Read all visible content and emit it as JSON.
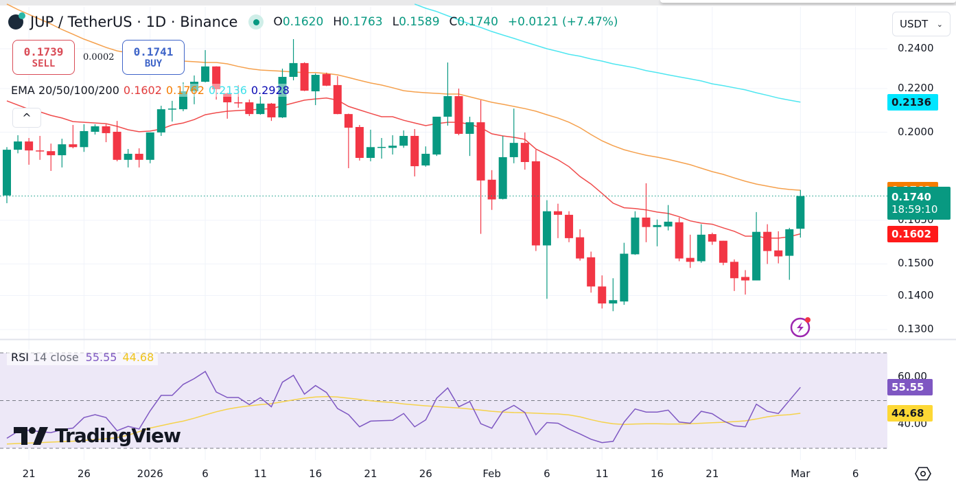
{
  "header": {
    "symbol": "JUP / TetherUS · 1D · Binance",
    "ohlc": {
      "o_label": "O",
      "o": "0.1620",
      "h_label": "H",
      "h": "0.1763",
      "l_label": "L",
      "l": "0.1589",
      "c_label": "C",
      "c": "0.1740",
      "change": "+0.0121 (+7.47%)"
    },
    "market_status_icon": "market-open-dot"
  },
  "trade": {
    "sell_price": "0.1739",
    "sell_label": "SELL",
    "spread": "0.0002",
    "buy_price": "0.1741",
    "buy_label": "BUY"
  },
  "ema_legend": {
    "label": "EMA 20/50/100/200",
    "v20": "0.1602",
    "v50": "0.1762",
    "v100": "0.2136",
    "v200": "0.2928"
  },
  "currency": {
    "selected": "USDT"
  },
  "collapse_label": "^",
  "rsi_legend": {
    "label": "RSI",
    "params": "14 close",
    "rsi": "55.55",
    "ma": "44.68"
  },
  "watermark": "TradingView",
  "colors": {
    "up": "#089981",
    "down": "#f23645",
    "ema20": "#f04b4b",
    "ema50": "#f5a04c",
    "ema100": "#4ee6f0",
    "ema200": "#0a0ab4",
    "rsi": "#7e57c2",
    "rsi_ma": "#f5d24a"
  },
  "chart_data": {
    "type": "candlestick",
    "y_scale": "log",
    "ylim": [
      0.13,
      0.245
    ],
    "grid": true,
    "price_ticks": [
      "0.2400",
      "0.2200",
      "0.2000",
      "0.1650",
      "0.1500",
      "0.1400",
      "0.1300"
    ],
    "time_ticks": [
      {
        "date": "2025-12-21",
        "label": "21"
      },
      {
        "date": "2025-12-26",
        "label": "26"
      },
      {
        "date": "2026-01-01",
        "label": "2026"
      },
      {
        "date": "2026-01-06",
        "label": "6"
      },
      {
        "date": "2026-01-11",
        "label": "11"
      },
      {
        "date": "2026-01-16",
        "label": "16"
      },
      {
        "date": "2026-01-21",
        "label": "21"
      },
      {
        "date": "2026-01-26",
        "label": "26"
      },
      {
        "date": "2026-02-01",
        "label": "Feb"
      },
      {
        "date": "2026-02-06",
        "label": "6"
      },
      {
        "date": "2026-02-11",
        "label": "11"
      },
      {
        "date": "2026-02-16",
        "label": "16"
      },
      {
        "date": "2026-02-21",
        "label": "21"
      },
      {
        "date": "2026-03-01",
        "label": "Mar"
      },
      {
        "date": "2026-03-06",
        "label": "6"
      }
    ],
    "candles": [
      [
        "2025-12-19",
        0.1742,
        0.1936,
        0.1713,
        0.1925
      ],
      [
        "2025-12-20",
        0.1925,
        0.1987,
        0.191,
        0.196
      ],
      [
        "2025-12-21",
        0.196,
        0.1975,
        0.1863,
        0.1922
      ],
      [
        "2025-12-22",
        0.1922,
        0.1984,
        0.1883,
        0.1919
      ],
      [
        "2025-12-23",
        0.1919,
        0.1951,
        0.1838,
        0.1902
      ],
      [
        "2025-12-24",
        0.1902,
        0.1972,
        0.1852,
        0.1948
      ],
      [
        "2025-12-25",
        0.1948,
        0.2032,
        0.1931,
        0.1936
      ],
      [
        "2025-12-26",
        0.1936,
        0.2035,
        0.1916,
        0.2005
      ],
      [
        "2025-12-27",
        0.2002,
        0.2035,
        0.199,
        0.2026
      ],
      [
        "2025-12-28",
        0.2026,
        0.2035,
        0.1957,
        0.1996
      ],
      [
        "2025-12-29",
        0.2002,
        0.205,
        0.1877,
        0.1883
      ],
      [
        "2025-12-30",
        0.1883,
        0.1928,
        0.1852,
        0.1908
      ],
      [
        "2025-12-31",
        0.1908,
        0.1931,
        0.1852,
        0.1883
      ],
      [
        "2026-01-01",
        0.1883,
        0.1999,
        0.1869,
        0.1999
      ],
      [
        "2026-01-02",
        0.1999,
        0.2119,
        0.1984,
        0.2103
      ],
      [
        "2026-01-03",
        0.2103,
        0.2142,
        0.2047,
        0.2106
      ],
      [
        "2026-01-04",
        0.2103,
        0.223,
        0.2094,
        0.2187
      ],
      [
        "2026-01-05",
        0.2187,
        0.2264,
        0.2126,
        0.2233
      ],
      [
        "2026-01-06",
        0.2233,
        0.2393,
        0.223,
        0.2309
      ],
      [
        "2026-01-07",
        0.2309,
        0.231,
        0.2148,
        0.2197
      ],
      [
        "2026-01-08",
        0.2177,
        0.218,
        0.206,
        0.2135
      ],
      [
        "2026-01-09",
        0.2135,
        0.2217,
        0.211,
        0.2133
      ],
      [
        "2026-01-10",
        0.2135,
        0.2148,
        0.2072,
        0.2081
      ],
      [
        "2026-01-11",
        0.2081,
        0.2164,
        0.2078,
        0.2129
      ],
      [
        "2026-01-12",
        0.2129,
        0.2132,
        0.205,
        0.2066
      ],
      [
        "2026-01-13",
        0.2066,
        0.2298,
        0.2063,
        0.2257
      ],
      [
        "2026-01-14",
        0.2257,
        0.2451,
        0.224,
        0.2326
      ],
      [
        "2026-01-15",
        0.2326,
        0.233,
        0.2188,
        0.219
      ],
      [
        "2026-01-16",
        0.2187,
        0.2274,
        0.2122,
        0.2267
      ],
      [
        "2026-01-17",
        0.2271,
        0.2278,
        0.2212,
        0.2214
      ],
      [
        "2026-01-18",
        0.2217,
        0.2261,
        0.208,
        0.2081
      ],
      [
        "2026-01-19",
        0.2081,
        0.2083,
        0.1849,
        0.202
      ],
      [
        "2026-01-20",
        0.2023,
        0.2032,
        0.188,
        0.1891
      ],
      [
        "2026-01-21",
        0.1891,
        0.2011,
        0.1877,
        0.1936
      ],
      [
        "2026-01-22",
        0.1936,
        0.1975,
        0.1888,
        0.1937
      ],
      [
        "2026-01-23",
        0.1933,
        0.1987,
        0.1905,
        0.1942
      ],
      [
        "2026-01-24",
        0.1942,
        0.2008,
        0.1933,
        0.1984
      ],
      [
        "2026-01-25",
        0.1984,
        0.2014,
        0.1816,
        0.1857
      ],
      [
        "2026-01-26",
        0.186,
        0.1939,
        0.1855,
        0.1908
      ],
      [
        "2026-01-27",
        0.1905,
        0.2069,
        0.1899,
        0.2069
      ],
      [
        "2026-01-28",
        0.2069,
        0.2329,
        0.2029,
        0.2164
      ],
      [
        "2026-01-29",
        0.2164,
        0.22,
        0.1987,
        0.1993
      ],
      [
        "2026-01-30",
        0.1993,
        0.2069,
        0.1899,
        0.2044
      ],
      [
        "2026-01-31",
        0.2044,
        0.2145,
        0.1602,
        0.18
      ],
      [
        "2026-02-01",
        0.1803,
        0.1841,
        0.1688,
        0.1727
      ],
      [
        "2026-02-02",
        0.1729,
        0.1984,
        0.1727,
        0.1894
      ],
      [
        "2026-02-03",
        0.1894,
        0.2106,
        0.1869,
        0.1954
      ],
      [
        "2026-02-04",
        0.1954,
        0.1999,
        0.1843,
        0.1874
      ],
      [
        "2026-02-05",
        0.1877,
        0.1925,
        0.1543,
        0.1562
      ],
      [
        "2026-02-06",
        0.1562,
        0.1724,
        0.139,
        0.1683
      ],
      [
        "2026-02-07",
        0.1683,
        0.1711,
        0.1587,
        0.167
      ],
      [
        "2026-02-08",
        0.167,
        0.1683,
        0.1573,
        0.1587
      ],
      [
        "2026-02-09",
        0.159,
        0.1618,
        0.1511,
        0.1518
      ],
      [
        "2026-02-10",
        0.1522,
        0.1541,
        0.1409,
        0.1428
      ],
      [
        "2026-02-11",
        0.1428,
        0.1463,
        0.1361,
        0.1376
      ],
      [
        "2026-02-12",
        0.1376,
        0.1454,
        0.1353,
        0.1386
      ],
      [
        "2026-02-13",
        0.1382,
        0.1571,
        0.1372,
        0.1534
      ],
      [
        "2026-02-14",
        0.1532,
        0.1683,
        0.153,
        0.166
      ],
      [
        "2026-02-15",
        0.166,
        0.1789,
        0.1573,
        0.1626
      ],
      [
        "2026-02-16",
        0.1626,
        0.1653,
        0.1559,
        0.1633
      ],
      [
        "2026-02-17",
        0.1628,
        0.1706,
        0.1614,
        0.1645
      ],
      [
        "2026-02-18",
        0.1643,
        0.166,
        0.1509,
        0.1518
      ],
      [
        "2026-02-19",
        0.152,
        0.1599,
        0.1487,
        0.1507
      ],
      [
        "2026-02-20",
        0.1509,
        0.1636,
        0.1504,
        0.1599
      ],
      [
        "2026-02-21",
        0.1601,
        0.1606,
        0.1564,
        0.1575
      ],
      [
        "2026-02-22",
        0.1578,
        0.1578,
        0.1496,
        0.1504
      ],
      [
        "2026-02-23",
        0.1507,
        0.1515,
        0.1414,
        0.1454
      ],
      [
        "2026-02-24",
        0.1458,
        0.148,
        0.1403,
        0.1447
      ],
      [
        "2026-02-25",
        0.1447,
        0.168,
        0.1447,
        0.1609
      ],
      [
        "2026-02-26",
        0.1609,
        0.1636,
        0.15,
        0.1543
      ],
      [
        "2026-02-27",
        0.1545,
        0.1611,
        0.1502,
        0.1525
      ],
      [
        "2026-02-28",
        0.1527,
        0.1623,
        0.1449,
        0.1618
      ],
      [
        "2026-03-01",
        0.162,
        0.1763,
        0.1589,
        0.174
      ]
    ],
    "ema": [
      {
        "name": "EMA 20",
        "values": [
          0.2142,
          0.2122,
          0.2103,
          0.2091,
          0.2075,
          0.2063,
          0.2047,
          0.2044,
          0.2041,
          0.2038,
          0.2026,
          0.2011,
          0.2002,
          0.2005,
          0.2014,
          0.2032,
          0.2041,
          0.2056,
          0.2078,
          0.2087,
          0.2094,
          0.2097,
          0.21,
          0.2103,
          0.2106,
          0.2119,
          0.2132,
          0.2145,
          0.2151,
          0.2155,
          0.2145,
          0.2116,
          0.21,
          0.2084,
          0.2069,
          0.2069,
          0.2053,
          0.2041,
          0.2029,
          0.2038,
          0.2044,
          0.2044,
          0.2035,
          0.202,
          0.1993,
          0.1984,
          0.1978,
          0.1969,
          0.1928,
          0.1905,
          0.1883,
          0.1855,
          0.1816,
          0.1786,
          0.175,
          0.1713,
          0.1696,
          0.1693,
          0.1688,
          0.168,
          0.1675,
          0.1663,
          0.1648,
          0.164,
          0.1636,
          0.1623,
          0.1611,
          0.1594,
          0.1594,
          0.1587,
          0.1587,
          0.1592,
          0.1602
        ]
      },
      {
        "name": "EMA 50",
        "values": [
          0.2646,
          0.2614,
          0.2587,
          0.256,
          0.2533,
          0.2503,
          0.2477,
          0.2451,
          0.2429,
          0.2407,
          0.2389,
          0.2379,
          0.2365,
          0.2354,
          0.2347,
          0.234,
          0.2336,
          0.2333,
          0.2329,
          0.2329,
          0.2322,
          0.2309,
          0.2298,
          0.2291,
          0.2288,
          0.2285,
          0.2281,
          0.2278,
          0.2278,
          0.2274,
          0.2267,
          0.2254,
          0.224,
          0.2227,
          0.2217,
          0.2204,
          0.219,
          0.2184,
          0.218,
          0.2177,
          0.2174,
          0.2174,
          0.2161,
          0.2148,
          0.2135,
          0.2126,
          0.2116,
          0.2106,
          0.2094,
          0.2078,
          0.2063,
          0.2044,
          0.202,
          0.199,
          0.1963,
          0.1942,
          0.1925,
          0.1913,
          0.1902,
          0.1894,
          0.1885,
          0.1874,
          0.1863,
          0.1849,
          0.1835,
          0.1824,
          0.181,
          0.1797,
          0.1786,
          0.1778,
          0.177,
          0.1765,
          0.1762
        ]
      },
      {
        "name": "EMA 100",
        "values": [
          null,
          null,
          null,
          null,
          null,
          null,
          null,
          null,
          null,
          null,
          null,
          null,
          null,
          null,
          null,
          null,
          null,
          null,
          null,
          null,
          null,
          null,
          null,
          null,
          null,
          null,
          null,
          null,
          null,
          null,
          null,
          null,
          null,
          null,
          null,
          null,
          null,
          0.2646,
          0.2622,
          0.2603,
          0.2579,
          0.2556,
          0.2533,
          0.2514,
          0.2492,
          0.2473,
          0.2455,
          0.2436,
          0.2418,
          0.24,
          0.2386,
          0.2371,
          0.2361,
          0.2347,
          0.2336,
          0.2322,
          0.2312,
          0.2302,
          0.2288,
          0.2278,
          0.2267,
          0.2257,
          0.2247,
          0.2237,
          0.2223,
          0.2214,
          0.2204,
          0.2194,
          0.218,
          0.2168,
          0.2155,
          0.2145,
          0.2136
        ]
      }
    ],
    "price_tags": [
      {
        "value": "0.2136",
        "series": "EMA 100"
      },
      {
        "value": "0.1762",
        "series": "EMA 50"
      },
      {
        "value": "0.1740",
        "countdown": "18:59:10",
        "series": "last"
      },
      {
        "value": "0.1602",
        "series": "EMA 20"
      }
    ],
    "rsi": {
      "ylim": [
        30,
        70
      ],
      "bands": [
        30,
        50,
        70
      ],
      "ticks": [
        "60.00",
        "40.00"
      ],
      "values": [
        34.2,
        37.1,
        37.6,
        37.0,
        36.6,
        37.8,
        38.5,
        42.9,
        44.1,
        42.9,
        37.4,
        39.2,
        38.1,
        45.7,
        52.2,
        52.2,
        56.8,
        59.2,
        62.2,
        53.6,
        51.3,
        51.3,
        48.3,
        51.2,
        47.4,
        57.7,
        60.6,
        52.7,
        56.3,
        53.4,
        46.7,
        44.1,
        39.0,
        41.4,
        41.6,
        41.7,
        44.6,
        39.0,
        41.9,
        51.0,
        55.3,
        47.4,
        49.6,
        40.3,
        38.4,
        45.5,
        48.0,
        45.0,
        35.7,
        40.8,
        40.5,
        38.1,
        36.0,
        33.8,
        32.4,
        32.9,
        41.0,
        46.5,
        45.2,
        45.2,
        46.0,
        41.0,
        40.5,
        45.5,
        44.5,
        41.5,
        39.4,
        39.0,
        48.5,
        45.5,
        44.6,
        50.1,
        55.55
      ],
      "ma": [
        31.8,
        32.0,
        32.2,
        32.4,
        32.6,
        32.8,
        33.0,
        33.3,
        33.6,
        34.0,
        34.5,
        35.5,
        37.0,
        38.5,
        39.5,
        40.5,
        41.4,
        42.6,
        44.0,
        45.3,
        46.4,
        47.2,
        47.8,
        48.3,
        48.7,
        49.5,
        50.3,
        51.0,
        51.5,
        51.7,
        51.5,
        51.0,
        50.5,
        49.9,
        49.5,
        49.2,
        48.6,
        48.2,
        47.8,
        47.5,
        47.2,
        46.9,
        46.5,
        46.0,
        45.5,
        45.2,
        45.0,
        44.9,
        44.7,
        44.5,
        44.4,
        44.0,
        43.2,
        42.0,
        41.0,
        40.3,
        40.0,
        40.2,
        40.3,
        40.3,
        40.2,
        40.2,
        40.3,
        40.5,
        40.7,
        40.9,
        41.2,
        41.5,
        42.3,
        43.2,
        43.8,
        44.1,
        44.68
      ]
    }
  }
}
